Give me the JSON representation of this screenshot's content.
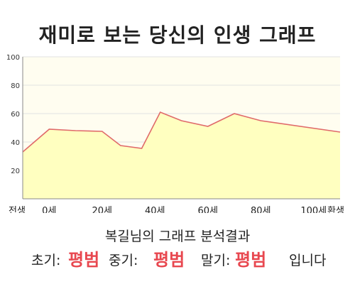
{
  "title": "재미로 보는 당신의 인생 그래프",
  "subtitle": "복길님의 그래프 분석결과",
  "result": {
    "early_label": "초기:",
    "early_value": "평범",
    "mid_label": "중기:",
    "mid_value": "평범",
    "late_label": "말기:",
    "late_value": "평범",
    "ending": "입니다"
  },
  "colors": {
    "plot_bg": "#fffdf0",
    "area_fill": "#ffffc0",
    "line": "#e06a6a",
    "verdict": "#e8474f"
  },
  "chart_data": {
    "type": "area",
    "ylim": [
      0,
      100
    ],
    "yticks": [
      20,
      40,
      60,
      80,
      100
    ],
    "xlim": [
      -10,
      110
    ],
    "xticks": [
      {
        "x": -10,
        "label": "전생"
      },
      {
        "x": 0,
        "label": "0세"
      },
      {
        "x": 20,
        "label": "20세"
      },
      {
        "x": 40,
        "label": "40세"
      },
      {
        "x": 60,
        "label": "60세"
      },
      {
        "x": 80,
        "label": "80세"
      },
      {
        "x": 100,
        "label": "100세"
      },
      {
        "x": 110,
        "label": "환생"
      }
    ],
    "x": [
      -10,
      0,
      10,
      20,
      27,
      35,
      42,
      50,
      60,
      70,
      80,
      110
    ],
    "values": [
      33,
      49,
      48,
      47.5,
      37.5,
      35.5,
      61,
      55,
      51,
      60,
      55,
      47
    ],
    "grid": "horizontal"
  }
}
